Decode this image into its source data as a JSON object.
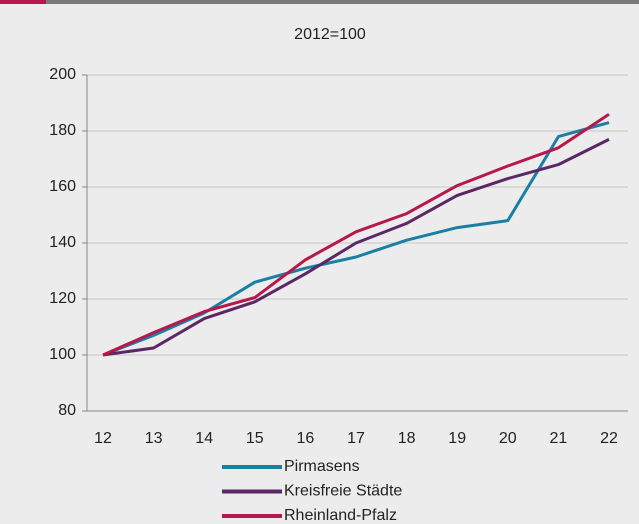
{
  "chart_data": {
    "type": "line",
    "title": "2012=100",
    "categories": [
      "12",
      "13",
      "14",
      "15",
      "16",
      "17",
      "18",
      "19",
      "20",
      "21",
      "22"
    ],
    "series": [
      {
        "name": "Pirmasens",
        "color": "#1a7fa3",
        "values": [
          100,
          107,
          115,
          126,
          131,
          135,
          141,
          145.5,
          148,
          178,
          183
        ]
      },
      {
        "name": "Kreisfreie Städte",
        "color": "#5b2767",
        "values": [
          100,
          102.5,
          113,
          119,
          129,
          140,
          147,
          157,
          163,
          168,
          177
        ]
      },
      {
        "name": "Rheinland-Pfalz",
        "color": "#b8174b",
        "values": [
          100,
          108,
          115.5,
          120.5,
          134,
          144,
          150.5,
          160.5,
          167.5,
          174,
          186
        ]
      }
    ],
    "ylim": [
      80,
      200
    ],
    "yticks": [
      80,
      100,
      120,
      140,
      160,
      180,
      200
    ],
    "grid": true,
    "legend": "bottom"
  }
}
